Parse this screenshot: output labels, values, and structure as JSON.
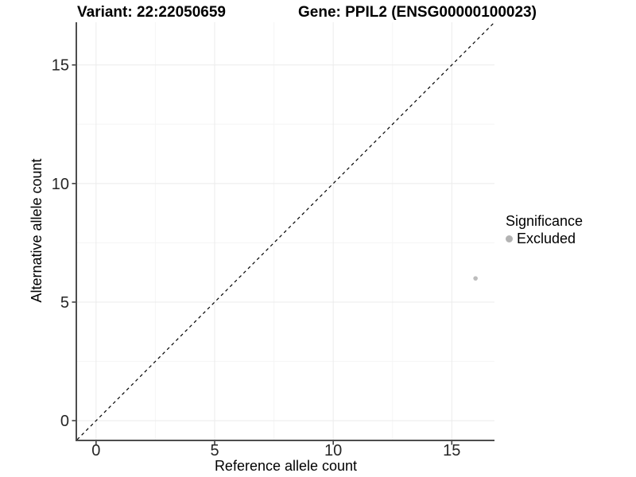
{
  "chart_data": {
    "type": "scatter",
    "title_left": "Variant: 22:22050659",
    "title_right": "Gene: PPIL2 (ENSG00000100023)",
    "xlabel": "Reference allele count",
    "ylabel": "Alternative allele count",
    "xlim": [
      -0.8,
      16.8
    ],
    "ylim": [
      -0.8,
      16.8
    ],
    "x_major_ticks": [
      0,
      5,
      10,
      15
    ],
    "y_major_ticks": [
      0,
      5,
      10,
      15
    ],
    "x_minor_ticks": [
      2.5,
      7.5,
      12.5
    ],
    "y_minor_ticks": [
      2.5,
      7.5,
      12.5
    ],
    "grid": true,
    "identity_line": {
      "equation": "y = x",
      "style": "dashed",
      "color": "#000000"
    },
    "series": [
      {
        "name": "Excluded",
        "color": "#bdbdbd",
        "points": [
          {
            "x": 16,
            "y": 6
          }
        ]
      }
    ],
    "legend": {
      "title": "Significance",
      "position": "right",
      "entries": [
        {
          "label": "Excluded",
          "color": "#b3b3b3"
        }
      ]
    },
    "colors": {
      "major_grid": "#ebebeb",
      "minor_grid": "#f5f5f5",
      "axis_line": "#4d4d4d",
      "tick_mark": "#333333",
      "tick_label": "#262626"
    }
  }
}
